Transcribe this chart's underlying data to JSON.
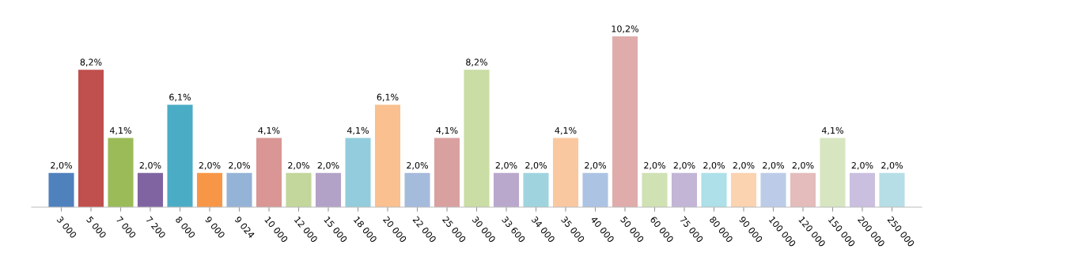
{
  "chart_data": {
    "type": "bar",
    "categories": [
      "3 000",
      "5 000",
      "7 000",
      "7 200",
      "8 000",
      "9 000",
      "9 024",
      "10 000",
      "12 000",
      "15 000",
      "18 000",
      "20 000",
      "22 000",
      "25 000",
      "30 000",
      "33 600",
      "34 000",
      "35 000",
      "40 000",
      "50 000",
      "60 000",
      "75 000",
      "80 000",
      "90 000",
      "100 000",
      "120 000",
      "150 000",
      "200 000",
      "250 000"
    ],
    "values": [
      2.0,
      8.2,
      4.1,
      2.0,
      6.1,
      2.0,
      2.0,
      4.1,
      2.0,
      2.0,
      4.1,
      6.1,
      2.0,
      4.1,
      8.2,
      2.0,
      2.0,
      4.1,
      2.0,
      10.2,
      2.0,
      2.0,
      2.0,
      2.0,
      2.0,
      2.0,
      4.1,
      2.0,
      2.0
    ],
    "value_labels": [
      "2,0%",
      "8,2%",
      "4,1%",
      "2,0%",
      "6,1%",
      "2,0%",
      "2,0%",
      "4,1%",
      "2,0%",
      "2,0%",
      "4,1%",
      "6,1%",
      "2,0%",
      "4,1%",
      "8,2%",
      "2,0%",
      "2,0%",
      "4,1%",
      "2,0%",
      "10,2%",
      "2,0%",
      "2,0%",
      "2,0%",
      "2,0%",
      "2,0%",
      "2,0%",
      "4,1%",
      "2,0%",
      "2,0%"
    ],
    "colors": [
      "#4f81bd",
      "#c0504d",
      "#9bbb59",
      "#8064a2",
      "#4bacc6",
      "#f79646",
      "#95b3d7",
      "#d99694",
      "#c3d69b",
      "#b3a2c7",
      "#93cddd",
      "#fac08f",
      "#a5bbdc",
      "#d9a0a0",
      "#cadda4",
      "#b9a8cc",
      "#9fd4df",
      "#fac8a0",
      "#adc3e3",
      "#dfacab",
      "#d0e1b3",
      "#c3b5d6",
      "#ade0e8",
      "#fbd3b0",
      "#bccce8",
      "#e3bcbb",
      "#d7e6c1",
      "#cbbfe0",
      "#b6dee6"
    ],
    "tick_labels": "x",
    "grid": false
  }
}
